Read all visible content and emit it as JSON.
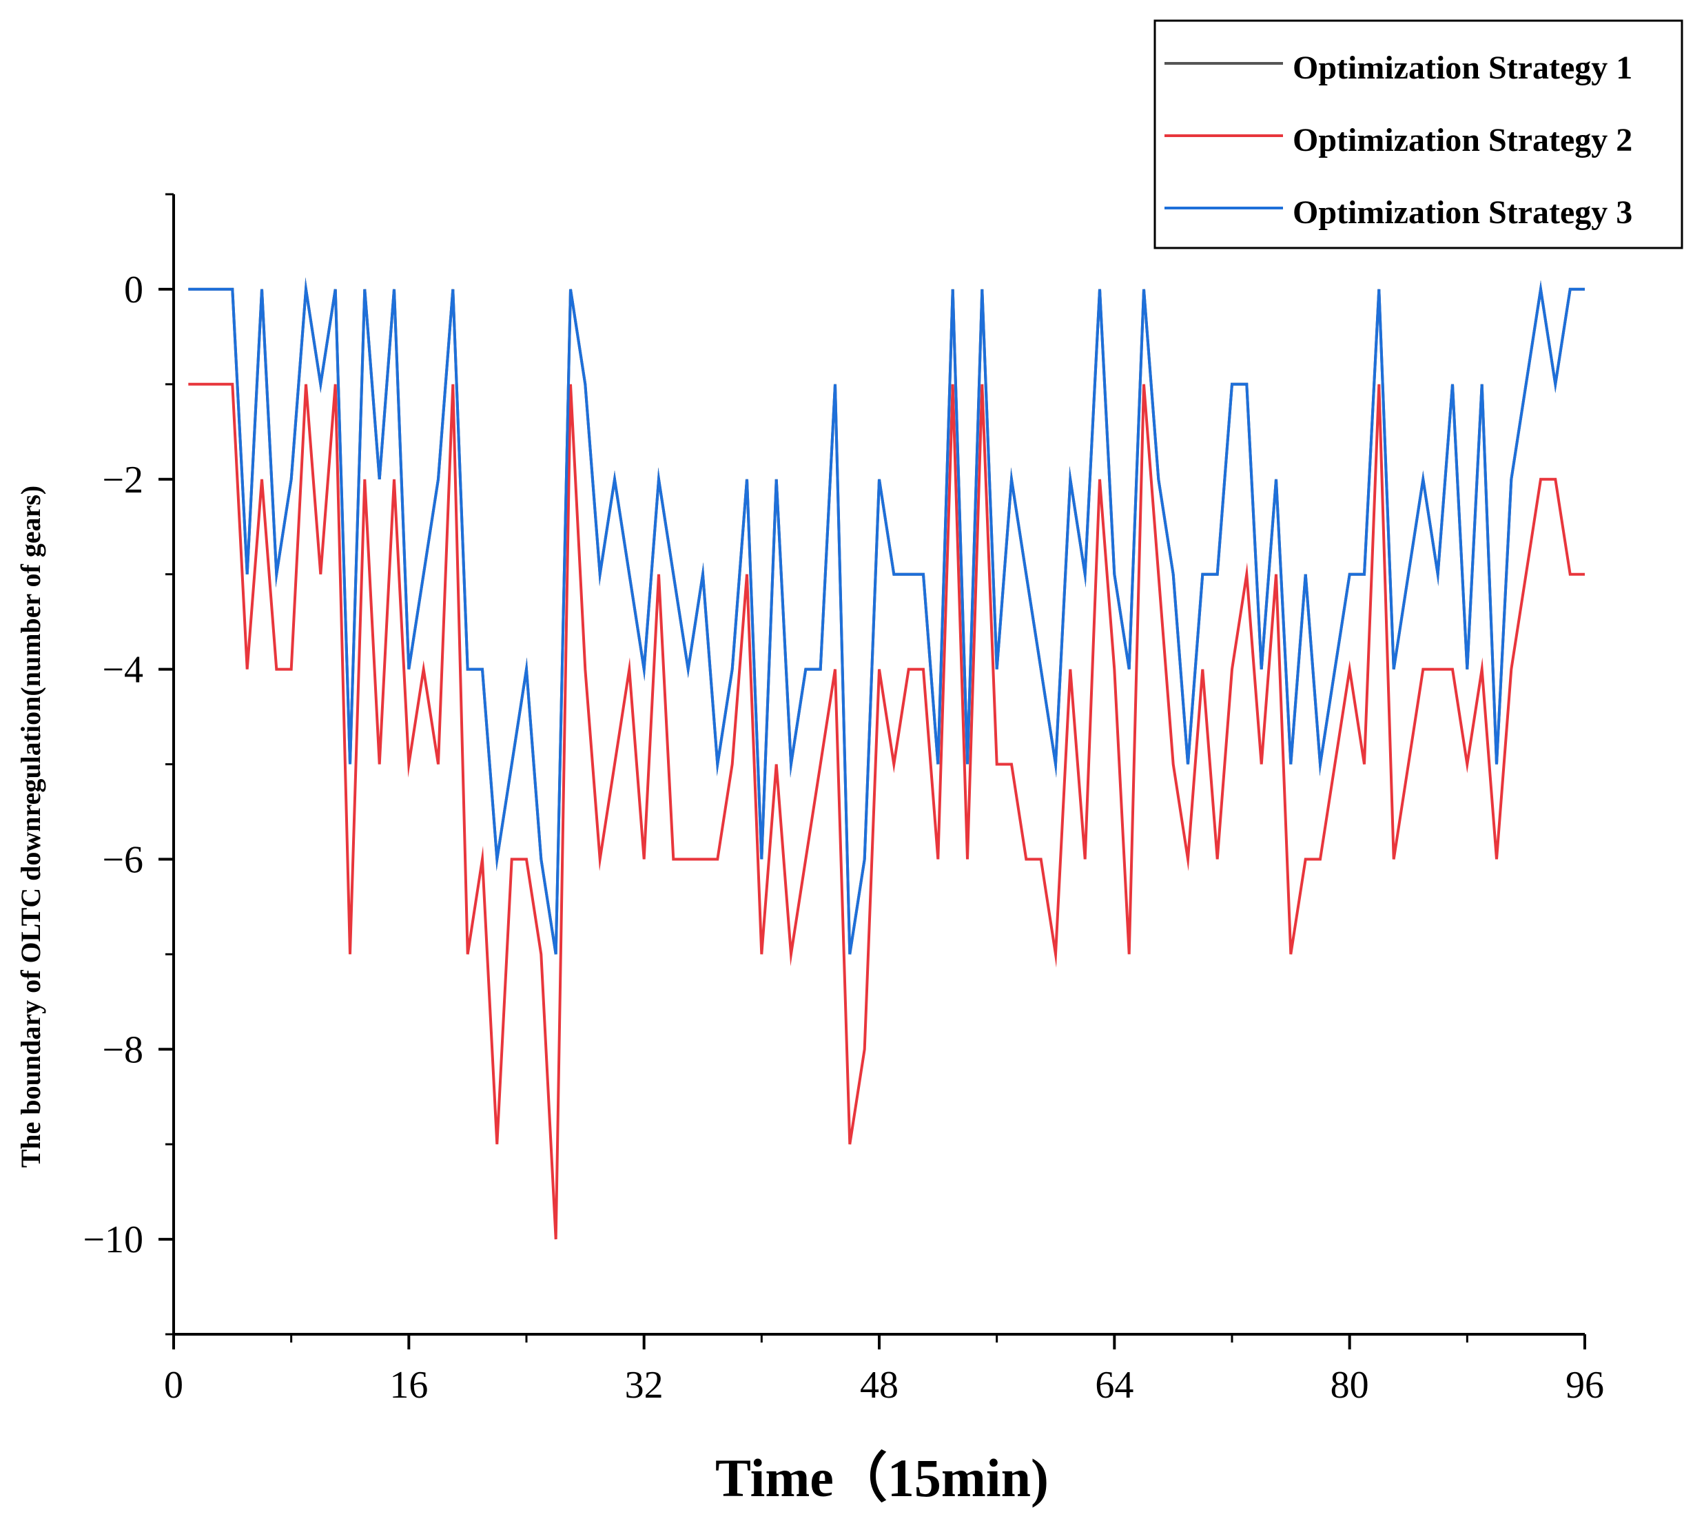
{
  "chart_data": {
    "type": "line",
    "title": "",
    "xlabel": "Time（15min)",
    "ylabel": "The boundary of OLTC downregulation(number of gears)",
    "xlim": [
      0,
      96
    ],
    "ylim": [
      -11,
      1
    ],
    "xticks": [
      0,
      16,
      32,
      48,
      64,
      80,
      96
    ],
    "xtick_labels": [
      "0",
      "16",
      "32",
      "48",
      "64",
      "80",
      "96"
    ],
    "yticks": [
      0,
      -2,
      -4,
      -6,
      -8,
      -10
    ],
    "ytick_labels": [
      "0",
      "−2",
      "−4",
      "−6",
      "−8",
      "−10"
    ],
    "x": [
      1,
      2,
      3,
      4,
      5,
      6,
      7,
      8,
      9,
      10,
      11,
      12,
      13,
      14,
      15,
      16,
      17,
      18,
      19,
      20,
      21,
      22,
      23,
      24,
      25,
      26,
      27,
      28,
      29,
      30,
      31,
      32,
      33,
      34,
      35,
      36,
      37,
      38,
      39,
      40,
      41,
      42,
      43,
      44,
      45,
      46,
      47,
      48,
      49,
      50,
      51,
      52,
      53,
      54,
      55,
      56,
      57,
      58,
      59,
      60,
      61,
      62,
      63,
      64,
      65,
      66,
      67,
      68,
      69,
      70,
      71,
      72,
      73,
      74,
      75,
      76,
      77,
      78,
      79,
      80,
      81,
      82,
      83,
      84,
      85,
      86,
      87,
      88,
      89,
      90,
      91,
      92,
      93,
      94,
      95,
      96
    ],
    "legend_position": "top-right",
    "series": [
      {
        "name": "Optimization Strategy 1",
        "color": "#555555",
        "values": [
          0,
          0,
          0,
          0,
          -3,
          0,
          -3,
          -2,
          0,
          -1,
          0,
          -5,
          0,
          -2,
          0,
          -4,
          -3,
          -2,
          0,
          -4,
          -4,
          -6,
          -5,
          -4,
          -6,
          -7,
          0,
          -1,
          -3,
          -2,
          -3,
          -4,
          -2,
          -3,
          -4,
          -3,
          -5,
          -4,
          -2,
          -6,
          -2,
          -5,
          -4,
          -4,
          -1,
          -7,
          -6,
          -2,
          -3,
          -3,
          -3,
          -5,
          0,
          -5,
          0,
          -4,
          -2,
          -3,
          -4,
          -5,
          -2,
          -3,
          0,
          -3,
          -4,
          0,
          -2,
          -3,
          -5,
          -3,
          -3,
          -1,
          -1,
          -4,
          -2,
          -5,
          -3,
          -5,
          -4,
          -3,
          -3,
          0,
          -4,
          -3,
          -2,
          -3,
          -1,
          -4,
          -1,
          -5,
          -2,
          -1,
          0,
          -1,
          0,
          0
        ]
      },
      {
        "name": "Optimization Strategy 2",
        "color": "#e8363c",
        "values": [
          -1,
          -1,
          -1,
          -1,
          -4,
          -2,
          -4,
          -4,
          -1,
          -3,
          -1,
          -7,
          -2,
          -5,
          -2,
          -5,
          -4,
          -5,
          -1,
          -7,
          -6,
          -9,
          -6,
          -6,
          -7,
          -10,
          -1,
          -4,
          -6,
          -5,
          -4,
          -6,
          -3,
          -6,
          -6,
          -6,
          -6,
          -5,
          -3,
          -7,
          -5,
          -7,
          -6,
          -5,
          -4,
          -9,
          -8,
          -4,
          -5,
          -4,
          -4,
          -6,
          -1,
          -6,
          -1,
          -5,
          -5,
          -6,
          -6,
          -7,
          -4,
          -6,
          -2,
          -4,
          -7,
          -1,
          -3,
          -5,
          -6,
          -4,
          -6,
          -4,
          -3,
          -5,
          -3,
          -7,
          -6,
          -6,
          -5,
          -4,
          -5,
          -1,
          -6,
          -5,
          -4,
          -4,
          -4,
          -5,
          -4,
          -6,
          -4,
          -3,
          -2,
          -2,
          -3,
          -3
        ]
      },
      {
        "name": "Optimization Strategy 3",
        "color": "#1e6fd9",
        "values": [
          0,
          0,
          0,
          0,
          -3,
          0,
          -3,
          -2,
          0,
          -1,
          0,
          -5,
          0,
          -2,
          0,
          -4,
          -3,
          -2,
          0,
          -4,
          -4,
          -6,
          -5,
          -4,
          -6,
          -7,
          0,
          -1,
          -3,
          -2,
          -3,
          -4,
          -2,
          -3,
          -4,
          -3,
          -5,
          -4,
          -2,
          -6,
          -2,
          -5,
          -4,
          -4,
          -1,
          -7,
          -6,
          -2,
          -3,
          -3,
          -3,
          -5,
          0,
          -5,
          0,
          -4,
          -2,
          -3,
          -4,
          -5,
          -2,
          -3,
          0,
          -3,
          -4,
          0,
          -2,
          -3,
          -5,
          -3,
          -3,
          -1,
          -1,
          -4,
          -2,
          -5,
          -3,
          -5,
          -4,
          -3,
          -3,
          0,
          -4,
          -3,
          -2,
          -3,
          -1,
          -4,
          -1,
          -5,
          -2,
          -1,
          0,
          -1,
          0,
          0
        ]
      }
    ]
  }
}
